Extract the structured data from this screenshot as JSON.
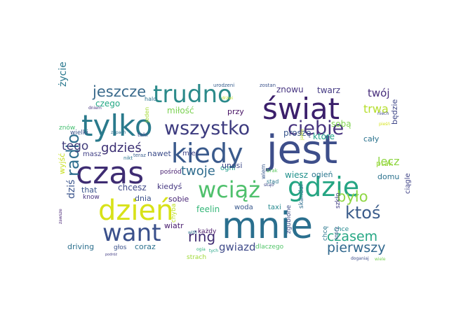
{
  "words": [
    {
      "text": "jest",
      "color": "#3d4e8a"
    },
    {
      "text": "mnie",
      "color": "#2a6f8e"
    },
    {
      "text": "świat",
      "color": "#3b1f6b"
    },
    {
      "text": "czas",
      "color": "#3e2c72"
    },
    {
      "text": "tylko",
      "color": "#2a7a8c"
    },
    {
      "text": "kiedy",
      "color": "#3a5a8c"
    },
    {
      "text": "dzień",
      "color": "#d8e219"
    },
    {
      "text": "gdzie",
      "color": "#25a583"
    },
    {
      "text": "trudno",
      "color": "#2b8a8a"
    },
    {
      "text": "want",
      "color": "#3a508b"
    },
    {
      "text": "wciąż",
      "color": "#4fc06c"
    },
    {
      "text": "wszystko",
      "color": "#3d3b7f"
    },
    {
      "text": "ciebie",
      "color": "#47337f"
    },
    {
      "text": "jeszcze",
      "color": "#3a6a8c"
    },
    {
      "text": "radio",
      "color": "#2e6e8e"
    },
    {
      "text": "ktoś",
      "color": "#3b5c8b"
    },
    {
      "text": "ring",
      "color": "#3f2b72"
    },
    {
      "text": "było",
      "color": "#8fd744"
    },
    {
      "text": "czasem",
      "color": "#26a784"
    },
    {
      "text": "pierwszy",
      "color": "#31688e"
    },
    {
      "text": "gdzieś",
      "color": "#3b2f73"
    },
    {
      "text": "twoje",
      "color": "#2f6c8e"
    },
    {
      "text": "trwa",
      "color": "#b5de2b"
    },
    {
      "text": "tego",
      "color": "#413d7b"
    },
    {
      "text": "życie",
      "color": "#2a788e"
    },
    {
      "text": "twój",
      "color": "#472d7b"
    },
    {
      "text": "lecz",
      "color": "#8ed645"
    },
    {
      "text": "gwiazd",
      "color": "#3e4a89"
    },
    {
      "text": "dziś",
      "color": "#3a548c"
    },
    {
      "text": "miłość",
      "color": "#7ad151"
    },
    {
      "text": "znowu",
      "color": "#463480"
    },
    {
      "text": "twarz",
      "color": "#443a83"
    },
    {
      "text": "czego",
      "color": "#22a884"
    },
    {
      "text": "przy",
      "color": "#471365"
    },
    {
      "text": "nawet",
      "color": "#3d4d8a"
    },
    {
      "text": "mieć",
      "color": "#414487"
    },
    {
      "text": "sobą",
      "color": "#7fd34e"
    },
    {
      "text": "proszę",
      "color": "#39568c"
    },
    {
      "text": "które",
      "color": "#1fa088"
    },
    {
      "text": "cały",
      "color": "#2c738e"
    },
    {
      "text": "będzie",
      "color": "#3f4788"
    },
    {
      "text": "ogień",
      "color": "#2a768e"
    },
    {
      "text": "wiesz",
      "color": "#21918c"
    },
    {
      "text": "domu",
      "color": "#2c728e"
    },
    {
      "text": "ptak",
      "color": "#9bd93c"
    },
    {
      "text": "chcesz",
      "color": "#3f4889"
    },
    {
      "text": "kiedyś",
      "color": "#453781"
    },
    {
      "text": "dnia",
      "color": "#3b518b"
    },
    {
      "text": "sobie",
      "color": "#482576"
    },
    {
      "text": "feelin",
      "color": "#35b779"
    },
    {
      "text": "woda",
      "color": "#38588c"
    },
    {
      "text": "taxi",
      "color": "#23888e"
    },
    {
      "text": "wiatr",
      "color": "#481b6d"
    },
    {
      "text": "strach",
      "color": "#a0da39"
    },
    {
      "text": "coraz",
      "color": "#2c718e"
    },
    {
      "text": "głos",
      "color": "#3b528b"
    },
    {
      "text": "driving",
      "color": "#2d708e"
    },
    {
      "text": "ogni",
      "color": "#1e9c89"
    },
    {
      "text": "pośród",
      "color": "#482071"
    },
    {
      "text": "unosi",
      "color": "#3e4989"
    },
    {
      "text": "chyba",
      "color": "#bddf26"
    },
    {
      "text": "dlaczego",
      "color": "#52c569"
    },
    {
      "text": "ciągle",
      "color": "#414487"
    },
    {
      "text": "chcę",
      "color": "#2a778e"
    },
    {
      "text": "szkło",
      "color": "#433e85"
    },
    {
      "text": "chce",
      "color": "#23898e"
    },
    {
      "text": "zgubione",
      "color": "#3d4e8a"
    },
    {
      "text": "skandal",
      "color": "#2e6d8e"
    },
    {
      "text": "każdy",
      "color": "#481769"
    },
    {
      "text": "tych",
      "color": "#20a486"
    },
    {
      "text": "that",
      "color": "#3a548c"
    },
    {
      "text": "know",
      "color": "#46327e"
    },
    {
      "text": "masz",
      "color": "#424186"
    },
    {
      "text": "wyjść",
      "color": "#c8e020"
    },
    {
      "text": "znów",
      "color": "#44bf70"
    },
    {
      "text": "wielki",
      "color": "#3a528b"
    },
    {
      "text": "nikt",
      "color": "#2b748e"
    },
    {
      "text": "teraz",
      "color": "#365c8d"
    },
    {
      "text": "taki",
      "color": "#3e4a89"
    },
    {
      "text": "zapach",
      "color": "#2e6f8e"
    },
    {
      "text": "jeden",
      "color": "#a5db36"
    },
    {
      "text": "halo",
      "color": "#2d718e"
    },
    {
      "text": "dniem",
      "color": "#463480"
    },
    {
      "text": "brak",
      "color": "#5ec962"
    },
    {
      "text": "jakby",
      "color": "#b8de29"
    },
    {
      "text": "wiem",
      "color": "#38588c"
    },
    {
      "text": "stąd",
      "color": "#2a788e"
    },
    {
      "text": "który",
      "color": "#3b528b"
    },
    {
      "text": "niech",
      "color": "#3f4889"
    },
    {
      "text": "pieśń",
      "color": "#d5e21a"
    },
    {
      "text": "doganiaj",
      "color": "#3d4d8a"
    },
    {
      "text": "wiele",
      "color": "#77d153"
    },
    {
      "text": "zawsze",
      "color": "#482475"
    },
    {
      "text": "podróż",
      "color": "#433d84"
    },
    {
      "text": "with",
      "color": "#2c728e"
    },
    {
      "text": "ogia",
      "color": "#2fb47c"
    },
    {
      "text": "drzwi",
      "color": "#bddf26"
    },
    {
      "text": "skąd",
      "color": "#3e4a89"
    },
    {
      "text": "urodzeni",
      "color": "#365d8d"
    },
    {
      "text": "zostan",
      "color": "#3b528b"
    }
  ]
}
